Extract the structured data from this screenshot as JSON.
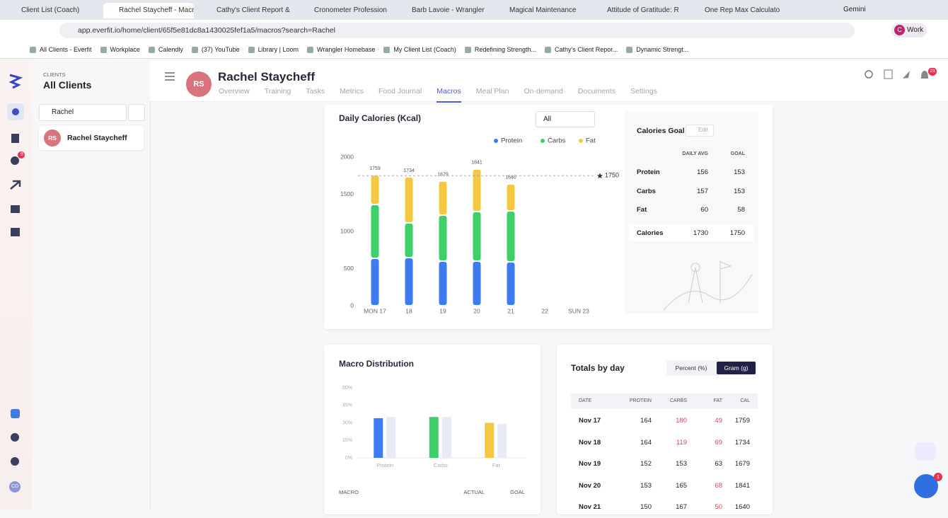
{
  "browser": {
    "tabs": [
      "Client List (Coach)",
      "Rachel Staycheff - Macr",
      "Cathy's Client Report &",
      "Cronometer Profession",
      "Barb Lavoie - Wrangler",
      "Magical Maintenance",
      "Attitude of Gratitude: R",
      "One Rep Max Calculato"
    ],
    "active_tab": 1,
    "gemini": "Gemini",
    "url": "app.everfit.io/home/client/65f5e81dc8a1430025fef1a5/macros?search=Rachel",
    "profile_initial": "C",
    "profile": "Work",
    "bookmarks": [
      "All Clients - Everfit",
      "Workplace",
      "Calendly",
      "(37) YouTube",
      "Library | Loom",
      "Wrangler Homebase",
      "My Client List (Coach)",
      "Redefining Strength...",
      "Cathy's Client Repor...",
      "Dynamic Strengt..."
    ]
  },
  "sidebar": {
    "message_badge": "8",
    "avatar": "CD"
  },
  "clients": {
    "label": "CLIENTS",
    "title": "All Clients",
    "search": "Rachel",
    "results": [
      {
        "initials": "RS",
        "name": "Rachel Staycheff"
      }
    ]
  },
  "header": {
    "initials": "RS",
    "name": "Rachel Staycheff",
    "nav": [
      "Overview",
      "Training",
      "Tasks",
      "Metrics",
      "Food Journal",
      "Macros",
      "Meal Plan",
      "On-demand",
      "Documents",
      "Settings"
    ],
    "active_nav": 5,
    "notifications": "23"
  },
  "chart_data": [
    {
      "type": "bar",
      "stacked": true,
      "title": "Daily Calories (Kcal)",
      "filter": "All",
      "categories": [
        "MON 17",
        "18",
        "19",
        "20",
        "21",
        "22",
        "SUN 23"
      ],
      "series": [
        {
          "name": "Protein",
          "color": "#3d7bf0",
          "values": [
            638,
            648,
            600,
            600,
            590,
            null,
            null
          ]
        },
        {
          "name": "Carbs",
          "color": "#3ccf6a",
          "values": [
            724,
            466,
            619,
            667,
            686,
            null,
            null
          ]
        },
        {
          "name": "Fat",
          "color": "#f5c842",
          "values": [
            397,
            620,
            460,
            574,
            364,
            null,
            null
          ]
        }
      ],
      "totals": [
        1759,
        1734,
        1679,
        1841,
        1640,
        null,
        null
      ],
      "goal": 1750,
      "ylim": [
        0,
        2000
      ],
      "yticks": [
        0,
        500,
        1000,
        1500,
        2000
      ],
      "legend": "top-right"
    },
    {
      "type": "bar",
      "title": "Macro Distribution",
      "categories": [
        "Protein",
        "Carbs",
        "Fat"
      ],
      "series": [
        {
          "name": "ACTUAL",
          "colors": [
            "#3d7bf0",
            "#3ccf6a",
            "#f5c842"
          ],
          "values": [
            34,
            35,
            30
          ]
        },
        {
          "name": "GOAL",
          "color": "#e9ebf4",
          "values": [
            35,
            35,
            29
          ]
        }
      ],
      "ylim": [
        0,
        60
      ],
      "yticks": [
        {
          "value": 0,
          "label": "0%"
        },
        {
          "value": 15,
          "label": "15%"
        },
        {
          "value": 30,
          "label": "30%"
        },
        {
          "value": 45,
          "label": "45%"
        },
        {
          "value": 60,
          "label": "60%"
        }
      ],
      "table_header": "MACRO"
    }
  ],
  "calories_goal": {
    "title": "Calories Goal",
    "edit": "Edit",
    "columns": [
      "DAILY AVG",
      "GOAL"
    ],
    "rows": [
      [
        "Protein",
        156,
        153
      ],
      [
        "Carbs",
        157,
        153
      ],
      [
        "Fat",
        60,
        58
      ]
    ],
    "total": [
      "Calories",
      1730,
      1750
    ]
  },
  "totals_by_day": {
    "title": "Totals by day",
    "toggle": [
      "Percent (%)",
      "Gram (g)"
    ],
    "active_toggle": 1,
    "columns": [
      "DATE",
      "PROTEIN",
      "CARBS",
      "FAT",
      "CAL"
    ],
    "rows": [
      [
        "Nov 17",
        164,
        180,
        49,
        1759
      ],
      [
        "Nov 18",
        164,
        119,
        69,
        1734
      ],
      [
        "Nov 19",
        152,
        153,
        63,
        1679
      ],
      [
        "Nov 20",
        153,
        165,
        68,
        1841
      ],
      [
        "Nov 21",
        150,
        167,
        50,
        1640
      ]
    ]
  },
  "chat_badge": "1"
}
